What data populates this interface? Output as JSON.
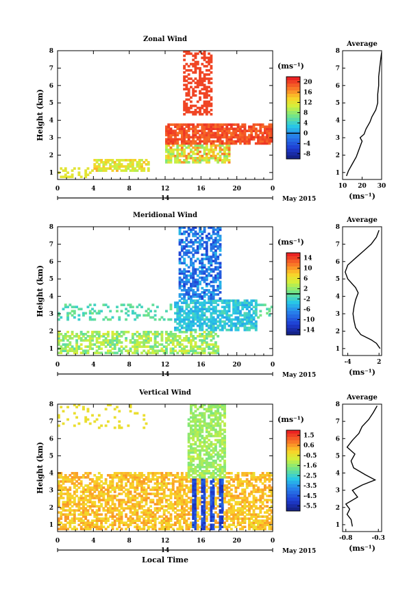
{
  "chart_data": [
    {
      "type": "heatmap",
      "title": "Zonal Wind",
      "xlabel": "",
      "ylabel": "Height (km)",
      "x_ticks": [
        "0",
        "4",
        "8",
        "12",
        "16",
        "20",
        "0"
      ],
      "y_ticks": [
        "1",
        "2",
        "3",
        "4",
        "5",
        "6",
        "7",
        "8"
      ],
      "xlim": [
        0,
        24
      ],
      "ylim": [
        0.6,
        8
      ],
      "date_label": "14",
      "date_note": "May 2015",
      "colorbar": {
        "unit": "(ms⁻¹)",
        "tick_labels": [
          "20",
          "16",
          "12",
          "8",
          "4",
          "0",
          "-4",
          "-8"
        ],
        "range": [
          -10,
          22
        ],
        "contour_label_value": "0"
      },
      "profile": {
        "title": "Average",
        "xlabel": "(ms⁻¹)",
        "x_ticks": [
          "10",
          "20",
          "30"
        ],
        "xlim": [
          10,
          30
        ],
        "points": [
          [
            12,
            0.8
          ],
          [
            13,
            1.1
          ],
          [
            15,
            1.5
          ],
          [
            17,
            1.9
          ],
          [
            18,
            2.2
          ],
          [
            19,
            2.5
          ],
          [
            20,
            2.8
          ],
          [
            19,
            3.0
          ],
          [
            21,
            3.2
          ],
          [
            22,
            3.5
          ],
          [
            24,
            3.9
          ],
          [
            25,
            4.2
          ],
          [
            27,
            4.6
          ],
          [
            28,
            5.0
          ],
          [
            28,
            5.5
          ],
          [
            28.5,
            6.0
          ],
          [
            28.5,
            6.5
          ],
          [
            29,
            7.0
          ],
          [
            29.5,
            7.5
          ],
          [
            30,
            7.9
          ]
        ]
      }
    },
    {
      "type": "heatmap",
      "title": "Meridional Wind",
      "xlabel": "",
      "ylabel": "Height (km)",
      "x_ticks": [
        "0",
        "4",
        "8",
        "12",
        "16",
        "20",
        "0"
      ],
      "y_ticks": [
        "1",
        "2",
        "3",
        "4",
        "5",
        "6",
        "7",
        "8"
      ],
      "xlim": [
        0,
        24
      ],
      "ylim": [
        0.6,
        8
      ],
      "date_label": "14",
      "date_note": "May 2015",
      "colorbar": {
        "unit": "(ms⁻¹)",
        "tick_labels": [
          "14",
          "10",
          "6",
          "2",
          "-2",
          "-6",
          "-10",
          "-14"
        ],
        "range": [
          -16,
          16
        ],
        "contour_label_value": "0"
      },
      "profile": {
        "title": "Average",
        "xlabel": "(ms⁻¹)",
        "x_ticks": [
          "-4",
          "2"
        ],
        "xlim": [
          -5,
          2.5
        ],
        "points": [
          [
            2.2,
            1.0
          ],
          [
            1.5,
            1.3
          ],
          [
            0.5,
            1.5
          ],
          [
            -1.5,
            1.8
          ],
          [
            -2.5,
            2.2
          ],
          [
            -2.8,
            2.6
          ],
          [
            -3.0,
            3.0
          ],
          [
            -2.8,
            3.4
          ],
          [
            -2.5,
            3.8
          ],
          [
            -2.0,
            4.2
          ],
          [
            -2.5,
            4.5
          ],
          [
            -4.0,
            5.0
          ],
          [
            -4.5,
            5.4
          ],
          [
            -4.0,
            5.8
          ],
          [
            -2.5,
            6.2
          ],
          [
            -1.0,
            6.6
          ],
          [
            0.5,
            7.0
          ],
          [
            1.5,
            7.4
          ],
          [
            2.0,
            7.8
          ]
        ]
      }
    },
    {
      "type": "heatmap",
      "title": "Vertical Wind",
      "xlabel": "Local Time",
      "ylabel": "Height (km)",
      "x_ticks": [
        "0",
        "4",
        "8",
        "12",
        "16",
        "20",
        "0"
      ],
      "y_ticks": [
        "1",
        "2",
        "3",
        "4",
        "5",
        "6",
        "7",
        "8"
      ],
      "xlim": [
        0,
        24
      ],
      "ylim": [
        0.6,
        8
      ],
      "date_label": "14",
      "date_note": "May 2015",
      "colorbar": {
        "unit": "(ms⁻¹)",
        "tick_labels": [
          "1.5",
          "0.6",
          "-0.5",
          "-1.6",
          "-2.5",
          "-3.5",
          "-4.5",
          "-5.5"
        ],
        "range": [
          -6,
          2
        ]
      },
      "profile": {
        "title": "Average",
        "xlabel": "(ms⁻¹)",
        "x_ticks": [
          "-0.8",
          "-0.3"
        ],
        "xlim": [
          -0.85,
          -0.25
        ],
        "points": [
          [
            -0.7,
            0.9
          ],
          [
            -0.72,
            1.3
          ],
          [
            -0.78,
            1.6
          ],
          [
            -0.74,
            1.9
          ],
          [
            -0.8,
            2.2
          ],
          [
            -0.62,
            2.6
          ],
          [
            -0.7,
            3.0
          ],
          [
            -0.55,
            3.3
          ],
          [
            -0.35,
            3.6
          ],
          [
            -0.5,
            3.9
          ],
          [
            -0.68,
            4.3
          ],
          [
            -0.72,
            4.7
          ],
          [
            -0.66,
            5.1
          ],
          [
            -0.78,
            5.5
          ],
          [
            -0.7,
            5.9
          ],
          [
            -0.6,
            6.3
          ],
          [
            -0.55,
            6.7
          ],
          [
            -0.45,
            7.1
          ],
          [
            -0.38,
            7.5
          ],
          [
            -0.32,
            7.9
          ]
        ]
      }
    }
  ]
}
